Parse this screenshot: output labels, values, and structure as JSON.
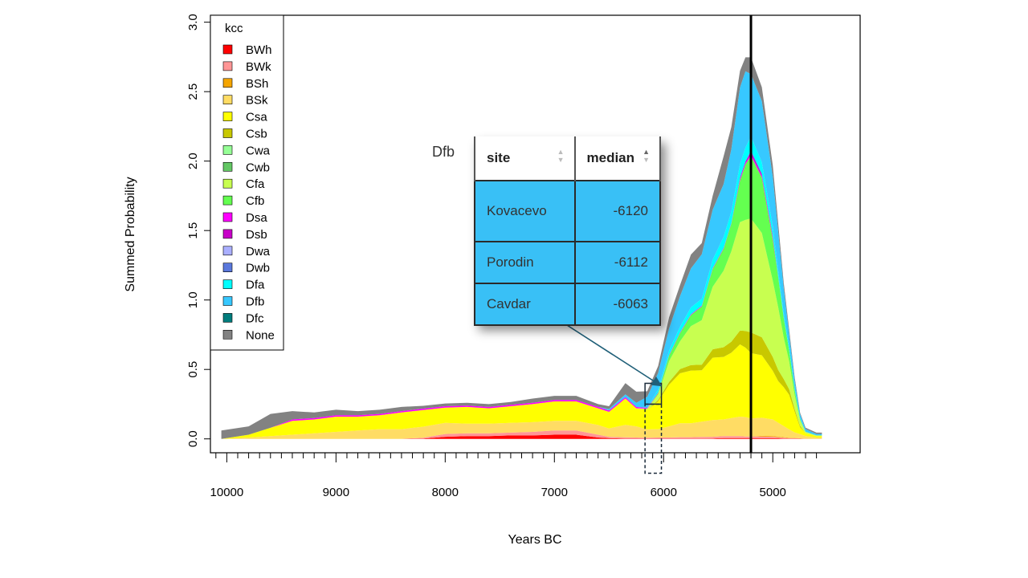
{
  "chart_data": {
    "type": "area",
    "title": "",
    "xlabel": "Years BC",
    "ylabel": "Summed Probability",
    "xlim": [
      10150,
      4200
    ],
    "ylim": [
      -0.1,
      3.05
    ],
    "x_ticks": [
      10000,
      9000,
      8000,
      7000,
      6000,
      5000
    ],
    "y_ticks": [
      0.0,
      0.5,
      1.0,
      1.5,
      2.0,
      2.5,
      3.0
    ],
    "y_tick_labels": [
      "0.0",
      "0.5",
      "1.0",
      "1.5",
      "2.0",
      "2.5",
      "3.0"
    ],
    "x_tick_labels": [
      "10000",
      "9000",
      "8000",
      "7000",
      "6000",
      "5000"
    ],
    "vertical_line_x": 5200,
    "legend": {
      "title": "kcc",
      "position": "top-left",
      "entries": [
        {
          "name": "BWh",
          "color": "#ff0000"
        },
        {
          "name": "BWk",
          "color": "#ff9696"
        },
        {
          "name": "BSh",
          "color": "#f5a500"
        },
        {
          "name": "BSk",
          "color": "#ffdc64"
        },
        {
          "name": "Csa",
          "color": "#ffff00"
        },
        {
          "name": "Csb",
          "color": "#c8c800"
        },
        {
          "name": "Cwa",
          "color": "#96ff96"
        },
        {
          "name": "Cwb",
          "color": "#63c764"
        },
        {
          "name": "Cfa",
          "color": "#c8ff50"
        },
        {
          "name": "Cfb",
          "color": "#64ff50"
        },
        {
          "name": "Dsa",
          "color": "#ff00ff"
        },
        {
          "name": "Dsb",
          "color": "#c800c8"
        },
        {
          "name": "Dwa",
          "color": "#aaafff"
        },
        {
          "name": "Dwb",
          "color": "#5a78dc"
        },
        {
          "name": "Dfa",
          "color": "#00ffff"
        },
        {
          "name": "Dfb",
          "color": "#37c8ff"
        },
        {
          "name": "Dfc",
          "color": "#007d7d"
        },
        {
          "name": "None",
          "color": "#828282"
        }
      ]
    },
    "x": [
      10050,
      9800,
      9600,
      9400,
      9200,
      9000,
      8800,
      8600,
      8400,
      8200,
      8000,
      7800,
      7600,
      7400,
      7200,
      7000,
      6800,
      6600,
      6500,
      6350,
      6250,
      6150,
      6050,
      5950,
      5850,
      5750,
      5650,
      5550,
      5450,
      5380,
      5300,
      5250,
      5200,
      5100,
      5000,
      4950,
      4900,
      4850,
      4800,
      4750,
      4700,
      4600,
      4550
    ],
    "series": [
      {
        "name": "BWh",
        "color": "#ff0000",
        "values": [
          0,
          0,
          0,
          0,
          0,
          0,
          0,
          0,
          0,
          0.003,
          0.015,
          0.02,
          0.02,
          0.025,
          0.025,
          0.03,
          0.03,
          0.01,
          0.005,
          0.003,
          0.003,
          0.002,
          0.002,
          0.002,
          0.002,
          0.002,
          0.002,
          0.003,
          0.005,
          0.005,
          0.005,
          0.005,
          0.005,
          0.005,
          0.005,
          0.004,
          0.003,
          0.002,
          0.002,
          0.001,
          0,
          0,
          0
        ]
      },
      {
        "name": "BWk",
        "color": "#ff9696",
        "values": [
          0,
          0,
          0,
          0,
          0,
          0,
          0,
          0,
          0,
          0.005,
          0.02,
          0.02,
          0.02,
          0.02,
          0.025,
          0.03,
          0.03,
          0.02,
          0.01,
          0.008,
          0.007,
          0.006,
          0.008,
          0.008,
          0.01,
          0.01,
          0.012,
          0.012,
          0.015,
          0.015,
          0.015,
          0.012,
          0.012,
          0.012,
          0.01,
          0.008,
          0.006,
          0.004,
          0.003,
          0.002,
          0.001,
          0,
          0
        ]
      },
      {
        "name": "BSh",
        "color": "#f5a500",
        "values": [
          0,
          0,
          0,
          0,
          0,
          0,
          0,
          0,
          0,
          0,
          0,
          0,
          0,
          0,
          0,
          0,
          0,
          0,
          0,
          0,
          0,
          0,
          0,
          0,
          0,
          0,
          0,
          0,
          0,
          0,
          0,
          0,
          0,
          0.005,
          0.005,
          0.004,
          0.003,
          0.002,
          0.002,
          0.001,
          0,
          0,
          0
        ]
      },
      {
        "name": "BSk",
        "color": "#ffdc64",
        "values": [
          0,
          0.01,
          0.02,
          0.03,
          0.04,
          0.05,
          0.06,
          0.07,
          0.07,
          0.08,
          0.08,
          0.07,
          0.07,
          0.07,
          0.07,
          0.07,
          0.07,
          0.07,
          0.06,
          0.09,
          0.08,
          0.06,
          0.06,
          0.08,
          0.1,
          0.1,
          0.11,
          0.12,
          0.12,
          0.13,
          0.14,
          0.14,
          0.13,
          0.13,
          0.12,
          0.1,
          0.08,
          0.06,
          0.04,
          0.03,
          0.02,
          0.01,
          0.01
        ]
      },
      {
        "name": "Csa",
        "color": "#ffff00",
        "values": [
          0,
          0.02,
          0.06,
          0.1,
          0.1,
          0.11,
          0.1,
          0.1,
          0.12,
          0.12,
          0.11,
          0.12,
          0.11,
          0.12,
          0.13,
          0.14,
          0.14,
          0.12,
          0.12,
          0.19,
          0.13,
          0.14,
          0.2,
          0.3,
          0.36,
          0.38,
          0.37,
          0.45,
          0.45,
          0.47,
          0.52,
          0.5,
          0.47,
          0.45,
          0.35,
          0.3,
          0.28,
          0.25,
          0.15,
          0.05,
          0.02,
          0.01,
          0.01
        ]
      },
      {
        "name": "Csb",
        "color": "#c8c800",
        "values": [
          0,
          0,
          0,
          0,
          0,
          0,
          0,
          0,
          0,
          0,
          0,
          0,
          0,
          0,
          0,
          0,
          0,
          0,
          0,
          0,
          0,
          0,
          0.01,
          0.02,
          0.03,
          0.04,
          0.04,
          0.06,
          0.07,
          0.08,
          0.1,
          0.12,
          0.15,
          0.13,
          0.1,
          0.08,
          0.06,
          0.04,
          0.02,
          0.01,
          0,
          0,
          0
        ]
      },
      {
        "name": "Cwa",
        "color": "#96ff96",
        "values": [
          0,
          0,
          0,
          0,
          0,
          0,
          0,
          0,
          0,
          0,
          0,
          0,
          0,
          0,
          0,
          0,
          0,
          0,
          0,
          0,
          0,
          0,
          0,
          0,
          0,
          0,
          0,
          0,
          0,
          0,
          0,
          0,
          0,
          0,
          0,
          0,
          0,
          0,
          0,
          0,
          0,
          0,
          0
        ]
      },
      {
        "name": "Cwb",
        "color": "#63c764",
        "values": [
          0,
          0,
          0,
          0,
          0,
          0,
          0,
          0,
          0,
          0,
          0,
          0,
          0,
          0,
          0,
          0,
          0,
          0,
          0,
          0,
          0,
          0,
          0,
          0,
          0,
          0,
          0,
          0,
          0,
          0,
          0,
          0,
          0,
          0,
          0,
          0,
          0,
          0,
          0,
          0,
          0,
          0,
          0
        ]
      },
      {
        "name": "Cfa",
        "color": "#c8ff50",
        "values": [
          0,
          0,
          0,
          0,
          0,
          0,
          0,
          0,
          0,
          0,
          0,
          0,
          0,
          0,
          0,
          0,
          0,
          0,
          0,
          0,
          0,
          0.01,
          0.04,
          0.15,
          0.2,
          0.28,
          0.32,
          0.45,
          0.55,
          0.65,
          0.78,
          0.8,
          0.82,
          0.75,
          0.55,
          0.45,
          0.3,
          0.2,
          0.1,
          0.04,
          0.01,
          0.005,
          0.005
        ]
      },
      {
        "name": "Cfb",
        "color": "#64ff50",
        "values": [
          0,
          0,
          0,
          0,
          0,
          0,
          0,
          0,
          0,
          0,
          0,
          0,
          0,
          0,
          0,
          0,
          0,
          0,
          0,
          0,
          0,
          0,
          0.01,
          0.04,
          0.06,
          0.08,
          0.1,
          0.13,
          0.16,
          0.2,
          0.3,
          0.4,
          0.45,
          0.4,
          0.3,
          0.22,
          0.14,
          0.08,
          0.04,
          0.01,
          0,
          0,
          0
        ]
      },
      {
        "name": "Dsa",
        "color": "#ff00ff",
        "values": [
          0,
          0,
          0,
          0.01,
          0.01,
          0.01,
          0.01,
          0.01,
          0.01,
          0.01,
          0.01,
          0.01,
          0.01,
          0.01,
          0.01,
          0.01,
          0.01,
          0.01,
          0.01,
          0.01,
          0.01,
          0.005,
          0.005,
          0.005,
          0.005,
          0.005,
          0.005,
          0.005,
          0.005,
          0.005,
          0.01,
          0.01,
          0.01,
          0.01,
          0.01,
          0.005,
          0.005,
          0,
          0,
          0,
          0,
          0,
          0
        ]
      },
      {
        "name": "Dsb",
        "color": "#c800c8",
        "values": [
          0,
          0,
          0,
          0,
          0,
          0,
          0,
          0,
          0,
          0,
          0,
          0,
          0,
          0,
          0,
          0,
          0,
          0,
          0,
          0,
          0,
          0,
          0,
          0,
          0,
          0,
          0,
          0,
          0,
          0,
          0.01,
          0.01,
          0.02,
          0.01,
          0.01,
          0,
          0,
          0,
          0,
          0,
          0,
          0,
          0
        ]
      },
      {
        "name": "Dwa",
        "color": "#aaafff",
        "values": [
          0,
          0,
          0,
          0,
          0,
          0,
          0,
          0,
          0,
          0,
          0,
          0,
          0,
          0,
          0,
          0,
          0,
          0,
          0,
          0,
          0,
          0,
          0,
          0,
          0,
          0,
          0,
          0,
          0,
          0,
          0,
          0,
          0,
          0,
          0,
          0,
          0,
          0,
          0,
          0,
          0,
          0,
          0
        ]
      },
      {
        "name": "Dwb",
        "color": "#5a78dc",
        "values": [
          0,
          0,
          0,
          0,
          0,
          0,
          0,
          0,
          0,
          0,
          0,
          0,
          0,
          0,
          0,
          0,
          0,
          0,
          0,
          0,
          0,
          0,
          0,
          0,
          0,
          0,
          0,
          0,
          0,
          0,
          0,
          0,
          0.01,
          0.01,
          0.01,
          0,
          0,
          0,
          0,
          0,
          0,
          0,
          0
        ]
      },
      {
        "name": "Dfa",
        "color": "#00ffff",
        "values": [
          0,
          0,
          0,
          0,
          0,
          0,
          0,
          0,
          0,
          0,
          0,
          0,
          0,
          0,
          0,
          0,
          0,
          0,
          0,
          0,
          0,
          0,
          0.02,
          0.03,
          0.04,
          0.05,
          0.05,
          0.06,
          0.08,
          0.08,
          0.1,
          0.1,
          0.1,
          0.08,
          0.06,
          0.04,
          0.03,
          0.02,
          0.01,
          0.005,
          0,
          0,
          0
        ]
      },
      {
        "name": "Dfb",
        "color": "#37c8ff",
        "values": [
          0,
          0,
          0,
          0,
          0,
          0,
          0,
          0,
          0,
          0,
          0,
          0,
          0,
          0,
          0,
          0,
          0,
          0,
          0.01,
          0.02,
          0.03,
          0.08,
          0.12,
          0.16,
          0.22,
          0.28,
          0.32,
          0.36,
          0.38,
          0.45,
          0.55,
          0.55,
          0.45,
          0.44,
          0.36,
          0.28,
          0.18,
          0.1,
          0.06,
          0.03,
          0.02,
          0.01,
          0.01
        ]
      },
      {
        "name": "Dfc",
        "color": "#007d7d",
        "values": [
          0,
          0,
          0,
          0,
          0,
          0,
          0,
          0,
          0,
          0,
          0,
          0,
          0,
          0,
          0,
          0,
          0,
          0,
          0,
          0,
          0,
          0,
          0,
          0,
          0,
          0,
          0,
          0,
          0,
          0,
          0,
          0,
          0,
          0,
          0,
          0,
          0,
          0,
          0,
          0,
          0,
          0,
          0
        ]
      },
      {
        "name": "None",
        "color": "#828282",
        "values": [
          0.06,
          0.06,
          0.1,
          0.06,
          0.04,
          0.04,
          0.03,
          0.03,
          0.03,
          0.02,
          0.02,
          0.02,
          0.02,
          0.02,
          0.03,
          0.03,
          0.03,
          0.02,
          0.02,
          0.08,
          0.08,
          0.04,
          0.05,
          0.08,
          0.08,
          0.1,
          0.08,
          0.1,
          0.2,
          0.16,
          0.12,
          0.1,
          0.12,
          0.1,
          0.08,
          0.06,
          0.04,
          0.03,
          0.02,
          0.01,
          0.01,
          0.01,
          0.01
        ]
      }
    ],
    "highlight_box": {
      "x_range": [
        6170,
        6020
      ],
      "y_range": [
        0.25,
        0.4
      ]
    },
    "inset": {
      "label": "Dfb",
      "columns": [
        "site",
        "median"
      ],
      "rows": [
        {
          "site": "Kovacevo",
          "median": "-6120"
        },
        {
          "site": "Porodin",
          "median": "-6112"
        },
        {
          "site": "Cavdar",
          "median": "-6063"
        }
      ]
    }
  }
}
